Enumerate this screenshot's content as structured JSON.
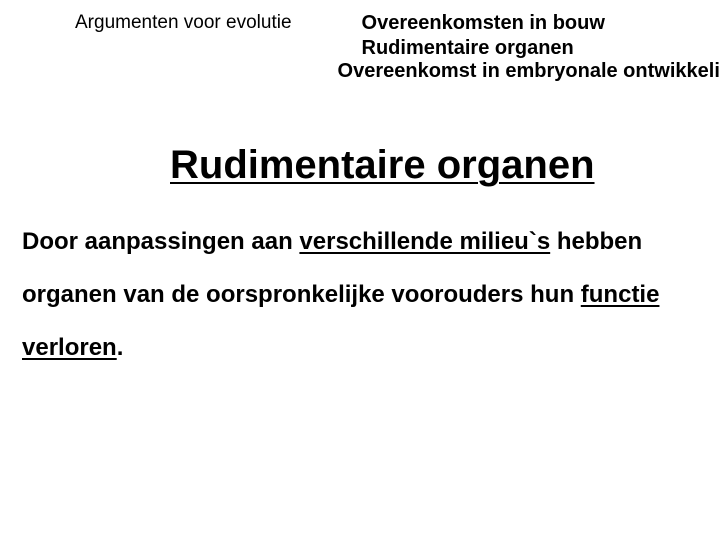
{
  "header": {
    "left": "Argumenten voor evolutie",
    "right": {
      "line1": "Overeenkomsten in bouw",
      "line2": "Rudimentaire organen",
      "line3": "Overeenkomst in embryonale ontwikkeling."
    }
  },
  "main_heading": "Rudimentaire organen",
  "body": {
    "pre1": "Door aanpassingen aan ",
    "u1": "verschillende milieu`s",
    "mid": " hebben organen van de oorspronkelijke voorouders hun ",
    "u2": "functie verloren",
    "end": "."
  },
  "style": {
    "text_color": "#000000",
    "background_color": "#ffffff",
    "font_family": "Comic Sans MS",
    "header_left_fontsize": 19,
    "header_right_fontsize": 20,
    "main_heading_fontsize": 40,
    "body_fontsize": 24,
    "body_line_height": 2.2
  }
}
